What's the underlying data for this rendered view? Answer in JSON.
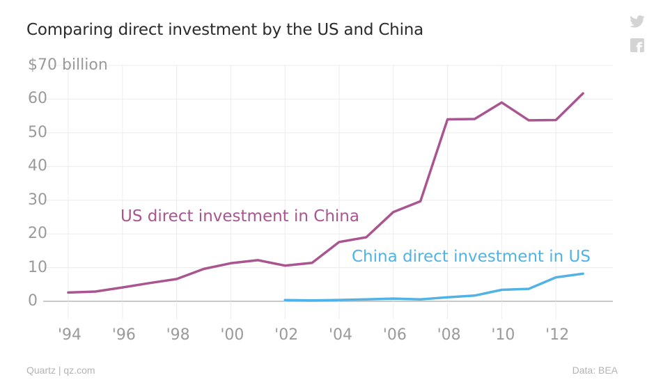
{
  "chart_data": {
    "type": "line",
    "title": "Comparing direct investment by the US and China",
    "ylabel": "$70 billion",
    "xlabel": "",
    "ylim": [
      0,
      70
    ],
    "yticks": [
      {
        "value": 70,
        "label": "$70 billion"
      },
      {
        "value": 60,
        "label": "60"
      },
      {
        "value": 50,
        "label": "50"
      },
      {
        "value": 40,
        "label": "40"
      },
      {
        "value": 30,
        "label": "30"
      },
      {
        "value": 20,
        "label": "20"
      },
      {
        "value": 10,
        "label": "10"
      },
      {
        "value": 0,
        "label": "0"
      }
    ],
    "xlim": [
      1993.5,
      2014
    ],
    "xticks": [
      {
        "value": 1994,
        "label": "'94"
      },
      {
        "value": 1996,
        "label": "'96"
      },
      {
        "value": 1998,
        "label": "'98"
      },
      {
        "value": 2000,
        "label": "'00"
      },
      {
        "value": 2002,
        "label": "'02"
      },
      {
        "value": 2004,
        "label": "'04"
      },
      {
        "value": 2006,
        "label": "'06"
      },
      {
        "value": 2008,
        "label": "'08"
      },
      {
        "value": 2010,
        "label": "'10"
      },
      {
        "value": 2012,
        "label": "'12"
      }
    ],
    "series": [
      {
        "name": "US direct investment in China",
        "color": "#a9558f",
        "x": [
          1994,
          1995,
          1996,
          1997,
          1998,
          1999,
          2000,
          2001,
          2002,
          2003,
          2004,
          2005,
          2006,
          2007,
          2008,
          2009,
          2010,
          2011,
          2012,
          2013
        ],
        "y": [
          2.6,
          2.9,
          4.1,
          5.4,
          6.6,
          9.6,
          11.3,
          12.2,
          10.6,
          11.4,
          17.6,
          19.0,
          26.5,
          29.7,
          54.0,
          54.1,
          59.0,
          53.7,
          53.8,
          61.7
        ]
      },
      {
        "name": "China direct investment in US",
        "color": "#51b2e5",
        "x": [
          2002,
          2003,
          2004,
          2005,
          2006,
          2007,
          2008,
          2009,
          2010,
          2011,
          2012,
          2013
        ],
        "y": [
          0.38,
          0.25,
          0.4,
          0.55,
          0.8,
          0.55,
          1.2,
          1.7,
          3.4,
          3.7,
          7.1,
          8.2
        ]
      }
    ]
  },
  "series_labels": {
    "us": "US direct investment in China",
    "china": "China direct investment in US"
  },
  "footer": {
    "source_left": "Quartz | qz.com",
    "source_right": "Data: BEA"
  },
  "icons": {
    "share_twitter": "twitter-icon",
    "share_facebook": "facebook-icon"
  },
  "colors": {
    "us_line": "#a9558f",
    "china_line": "#51b2e5",
    "grid": "#ececec",
    "axis": "#c8c8c8",
    "tick_text": "#9a9a9a"
  }
}
